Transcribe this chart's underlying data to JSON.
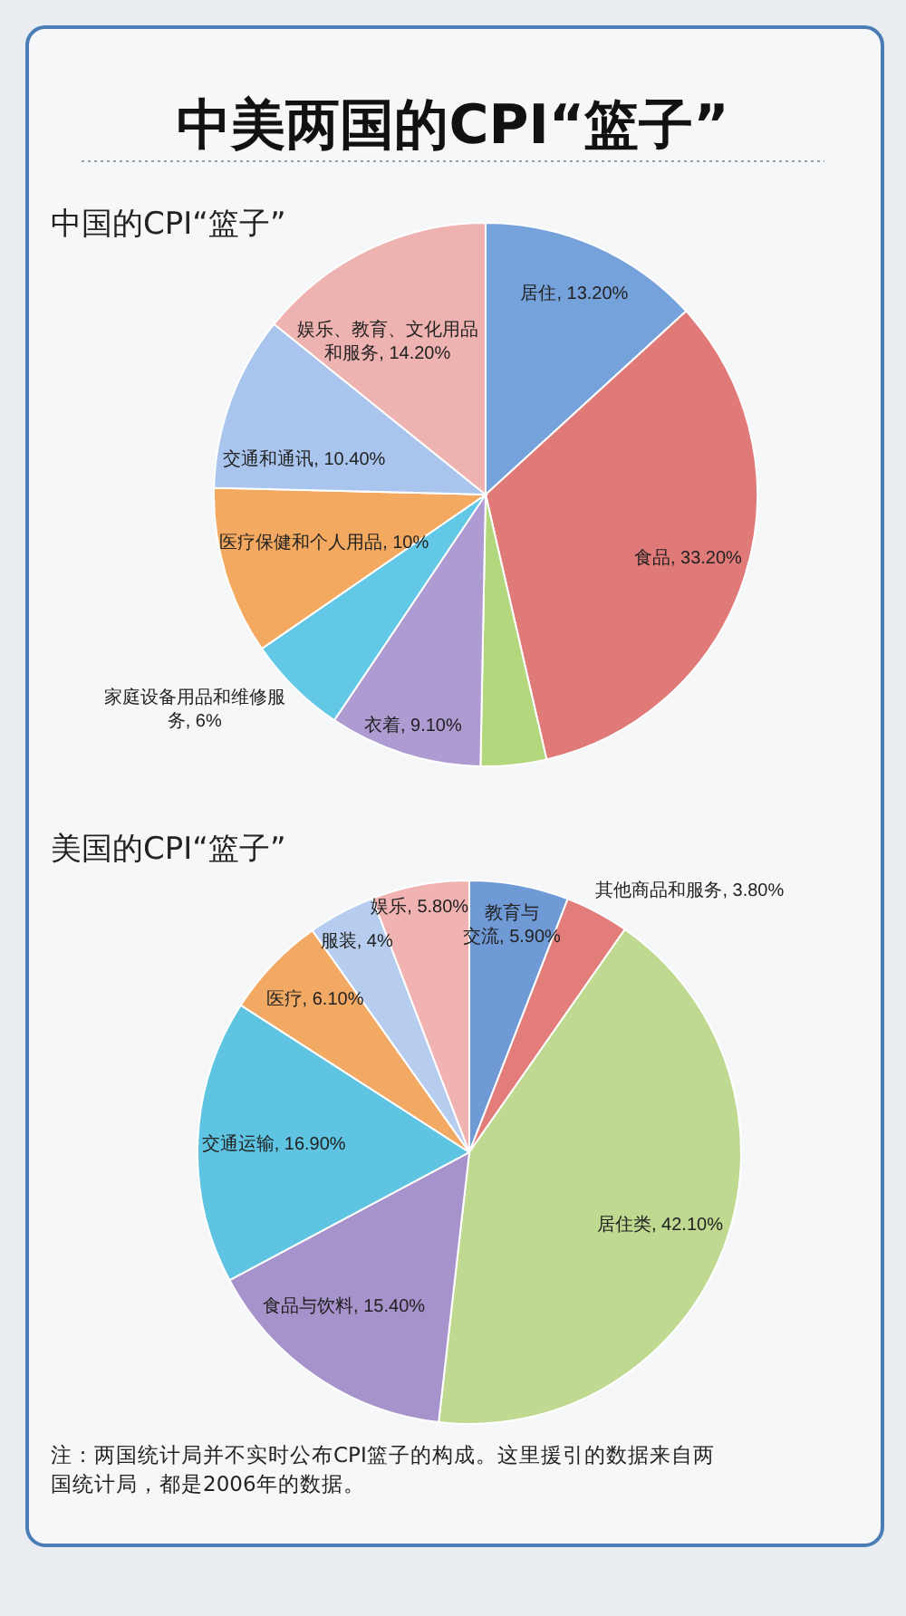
{
  "chart_data": [
    {
      "type": "pie",
      "title": "中美两国的CPI“篮子”",
      "subtitle": "中国的CPI“篮子”",
      "categories": [
        "居住",
        "食品",
        null,
        "衣着",
        "家庭设备用品和维修服务",
        "医疗保健和个人用品",
        "交通和通讯",
        "娱乐、教育、文化用品和服务"
      ],
      "values": [
        13.2,
        33.2,
        3.9,
        9.1,
        6,
        10,
        10.4,
        14.2
      ],
      "value_labels": [
        "13.20%",
        "33.20%",
        null,
        "9.10%",
        "6%",
        "10%",
        "10.40%",
        "14.20%"
      ],
      "colors": [
        "#76a2db",
        "#e07a78",
        "#b2d77c",
        "#ad9bd2",
        "#63c8e6",
        "#f3a95f",
        "#a9c5ee",
        "#eeb3b1"
      ]
    },
    {
      "type": "pie",
      "title": "美国的CPI“篮子”",
      "categories": [
        "教育与交流",
        "其他商品和服务",
        "居住类",
        "食品与饮料",
        "交通运输",
        "医疗",
        "服装",
        "娱乐"
      ],
      "values": [
        5.9,
        3.8,
        42.1,
        15.4,
        16.9,
        6.1,
        4,
        5.8
      ],
      "value_labels": [
        "5.90%",
        "3.80%",
        "42.10%",
        "15.40%",
        "16.90%",
        "6.10%",
        "4%",
        "5.80%"
      ],
      "colors": [
        "#6f9ad6",
        "#e37d7b",
        "#bfd990",
        "#a793cc",
        "#5ec4e2",
        "#f2a963",
        "#b6cdef",
        "#f1b3b2"
      ],
      "annotations": [
        "注：两国统计局并不实时公布CPI篮子的构成。这里援引的数据来自两国统计局，都是2006年的数据。"
      ]
    }
  ]
}
